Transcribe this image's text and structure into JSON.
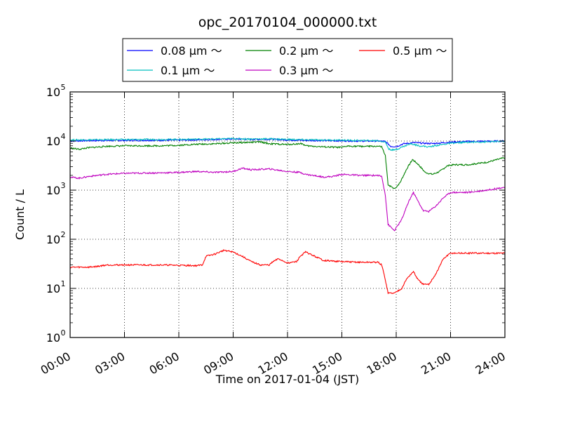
{
  "chart_data": {
    "type": "line",
    "title": "opc_20170104_000000.txt",
    "xlabel": "Time on 2017-01-04 (JST)",
    "ylabel": "Count / L",
    "x_unit": "hours",
    "xlim": [
      0,
      24
    ],
    "ylim": [
      1,
      100000
    ],
    "yscale": "log",
    "grid": true,
    "legend_position": "top",
    "x_ticks": [
      {
        "value": 0,
        "label": "00:00"
      },
      {
        "value": 3,
        "label": "03:00"
      },
      {
        "value": 6,
        "label": "06:00"
      },
      {
        "value": 9,
        "label": "09:00"
      },
      {
        "value": 12,
        "label": "12:00"
      },
      {
        "value": 15,
        "label": "15:00"
      },
      {
        "value": 18,
        "label": "18:00"
      },
      {
        "value": 21,
        "label": "21:00"
      },
      {
        "value": 24,
        "label": "24:00"
      }
    ],
    "y_ticks": [
      {
        "value": 1,
        "base": "10",
        "exp": "0"
      },
      {
        "value": 10,
        "base": "10",
        "exp": "1"
      },
      {
        "value": 100,
        "base": "10",
        "exp": "2"
      },
      {
        "value": 1000,
        "base": "10",
        "exp": "3"
      },
      {
        "value": 10000,
        "base": "10",
        "exp": "4"
      },
      {
        "value": 100000,
        "base": "10",
        "exp": "5"
      }
    ],
    "series": [
      {
        "name": "0.08 μm ～",
        "color": "#0000ff",
        "points": [
          [
            0,
            10000
          ],
          [
            1,
            10200
          ],
          [
            3,
            10300
          ],
          [
            6,
            10400
          ],
          [
            8,
            10800
          ],
          [
            9,
            11000
          ],
          [
            10,
            10800
          ],
          [
            11,
            10900
          ],
          [
            12,
            10500
          ],
          [
            13,
            10300
          ],
          [
            15,
            10100
          ],
          [
            16,
            10000
          ],
          [
            17,
            10000
          ],
          [
            17.4,
            9800
          ],
          [
            17.7,
            7800
          ],
          [
            18,
            7700
          ],
          [
            18.4,
            8800
          ],
          [
            19,
            9300
          ],
          [
            19.5,
            9000
          ],
          [
            20,
            8900
          ],
          [
            21,
            9500
          ],
          [
            22,
            9800
          ],
          [
            23,
            9900
          ],
          [
            24,
            10000
          ]
        ]
      },
      {
        "name": "0.1 μm ～",
        "color": "#00bfbf",
        "points": [
          [
            0,
            10500
          ],
          [
            1,
            10600
          ],
          [
            3,
            10700
          ],
          [
            6,
            10800
          ],
          [
            8,
            11000
          ],
          [
            9,
            11200
          ],
          [
            10,
            11000
          ],
          [
            11,
            11100
          ],
          [
            12,
            10800
          ],
          [
            13,
            10600
          ],
          [
            15,
            10400
          ],
          [
            16,
            10200
          ],
          [
            17,
            10200
          ],
          [
            17.4,
            9500
          ],
          [
            17.6,
            6800
          ],
          [
            17.9,
            6500
          ],
          [
            18.3,
            7500
          ],
          [
            18.8,
            8800
          ],
          [
            19.3,
            8000
          ],
          [
            19.8,
            7600
          ],
          [
            20.3,
            8200
          ],
          [
            21,
            9000
          ],
          [
            22,
            9500
          ],
          [
            23,
            9600
          ],
          [
            24,
            9900
          ]
        ]
      },
      {
        "name": "0.2 μm ～",
        "color": "#008000",
        "points": [
          [
            0,
            7200
          ],
          [
            0.5,
            6800
          ],
          [
            1,
            7300
          ],
          [
            2,
            7800
          ],
          [
            3,
            8000
          ],
          [
            5,
            8000
          ],
          [
            6,
            8200
          ],
          [
            7,
            8600
          ],
          [
            8,
            8800
          ],
          [
            9,
            9200
          ],
          [
            10,
            9400
          ],
          [
            10.5,
            9600
          ],
          [
            11,
            8800
          ],
          [
            12,
            8500
          ],
          [
            12.8,
            8900
          ],
          [
            13,
            8000
          ],
          [
            14,
            7600
          ],
          [
            15,
            7400
          ],
          [
            15.3,
            7900
          ],
          [
            16,
            7800
          ],
          [
            17,
            7800
          ],
          [
            17.2,
            7600
          ],
          [
            17.4,
            5000
          ],
          [
            17.55,
            1300
          ],
          [
            17.9,
            1050
          ],
          [
            18.2,
            1400
          ],
          [
            18.6,
            2800
          ],
          [
            18.9,
            4200
          ],
          [
            19.2,
            3400
          ],
          [
            19.6,
            2300
          ],
          [
            20,
            2100
          ],
          [
            20.4,
            2400
          ],
          [
            20.8,
            3100
          ],
          [
            21.2,
            3300
          ],
          [
            22,
            3300
          ],
          [
            23,
            3700
          ],
          [
            24,
            4600
          ]
        ]
      },
      {
        "name": "0.3 μm ～",
        "color": "#bf00bf",
        "points": [
          [
            0,
            1850
          ],
          [
            0.5,
            1750
          ],
          [
            1,
            1900
          ],
          [
            2,
            2100
          ],
          [
            3,
            2200
          ],
          [
            5,
            2250
          ],
          [
            6,
            2300
          ],
          [
            7,
            2400
          ],
          [
            8,
            2300
          ],
          [
            9,
            2400
          ],
          [
            9.5,
            2800
          ],
          [
            10,
            2600
          ],
          [
            11,
            2700
          ],
          [
            12,
            2400
          ],
          [
            12.7,
            2300
          ],
          [
            13,
            2100
          ],
          [
            14,
            1850
          ],
          [
            14.5,
            1900
          ],
          [
            15,
            2100
          ],
          [
            16,
            2000
          ],
          [
            17,
            2000
          ],
          [
            17.2,
            1900
          ],
          [
            17.4,
            800
          ],
          [
            17.55,
            200
          ],
          [
            17.9,
            150
          ],
          [
            18.3,
            250
          ],
          [
            18.7,
            600
          ],
          [
            18.95,
            900
          ],
          [
            19.2,
            600
          ],
          [
            19.5,
            380
          ],
          [
            19.8,
            370
          ],
          [
            20.2,
            480
          ],
          [
            20.6,
            700
          ],
          [
            21,
            900
          ],
          [
            22,
            900
          ],
          [
            23,
            1000
          ],
          [
            24,
            1150
          ]
        ]
      },
      {
        "name": "0.5 μm ～",
        "color": "#ff0000",
        "points": [
          [
            0,
            27
          ],
          [
            1,
            27
          ],
          [
            1.5,
            28
          ],
          [
            2,
            30
          ],
          [
            3,
            30
          ],
          [
            5,
            30
          ],
          [
            7,
            29
          ],
          [
            7.3,
            30
          ],
          [
            7.5,
            45
          ],
          [
            8,
            50
          ],
          [
            8.5,
            60
          ],
          [
            9,
            55
          ],
          [
            9.5,
            45
          ],
          [
            10,
            35
          ],
          [
            10.5,
            30
          ],
          [
            11,
            30
          ],
          [
            11.2,
            35
          ],
          [
            11.5,
            40
          ],
          [
            12,
            33
          ],
          [
            12.5,
            35
          ],
          [
            12.7,
            45
          ],
          [
            13,
            55
          ],
          [
            13.5,
            45
          ],
          [
            14,
            37
          ],
          [
            15,
            35
          ],
          [
            16,
            34
          ],
          [
            17,
            34
          ],
          [
            17.2,
            30
          ],
          [
            17.4,
            15
          ],
          [
            17.55,
            8
          ],
          [
            17.9,
            8
          ],
          [
            18.3,
            10
          ],
          [
            18.6,
            16
          ],
          [
            18.95,
            22
          ],
          [
            19.2,
            15
          ],
          [
            19.5,
            12
          ],
          [
            19.8,
            12
          ],
          [
            20.2,
            20
          ],
          [
            20.6,
            40
          ],
          [
            21,
            52
          ],
          [
            22,
            52
          ],
          [
            23,
            52
          ],
          [
            24,
            52
          ]
        ]
      }
    ]
  }
}
